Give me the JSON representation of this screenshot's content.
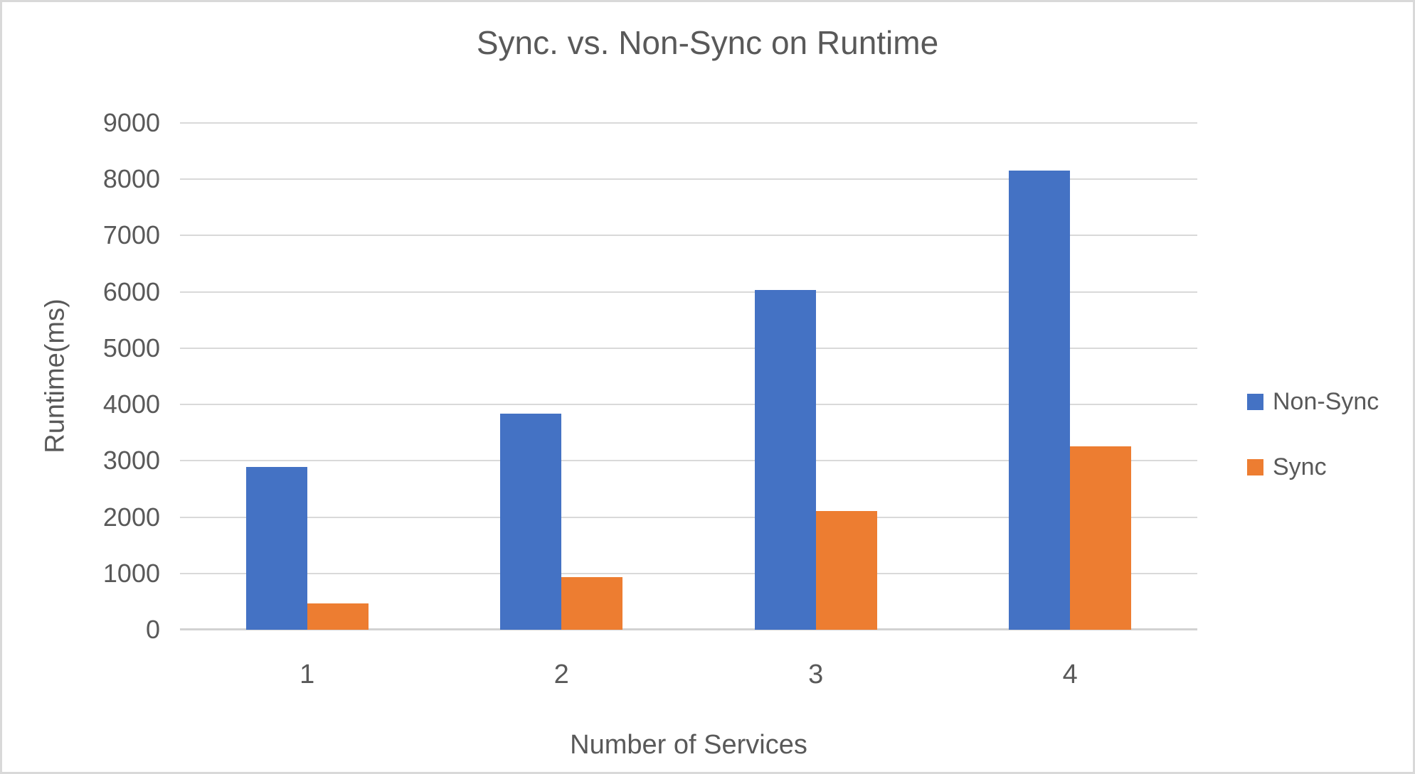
{
  "chart_data": {
    "type": "bar",
    "title": "Sync. vs. Non-Sync on Runtime",
    "xlabel": "Number of Services",
    "ylabel": "Runtime(ms)",
    "categories": [
      "1",
      "2",
      "3",
      "4"
    ],
    "series": [
      {
        "name": "Non-Sync",
        "color": "#4472C4",
        "values": [
          2890,
          3840,
          6030,
          8150
        ]
      },
      {
        "name": "Sync",
        "color": "#ED7D31",
        "values": [
          470,
          930,
          2110,
          3260
        ]
      }
    ],
    "ylim": [
      0,
      9000
    ],
    "ytick_step": 1000,
    "grid": true,
    "legend_position": "right"
  },
  "colors": {
    "text": "#595959",
    "gridline": "#D9D9D9",
    "axis_line": "#D2D2D2",
    "background": "#FFFFFF",
    "frame_border": "#D9D9D9"
  }
}
